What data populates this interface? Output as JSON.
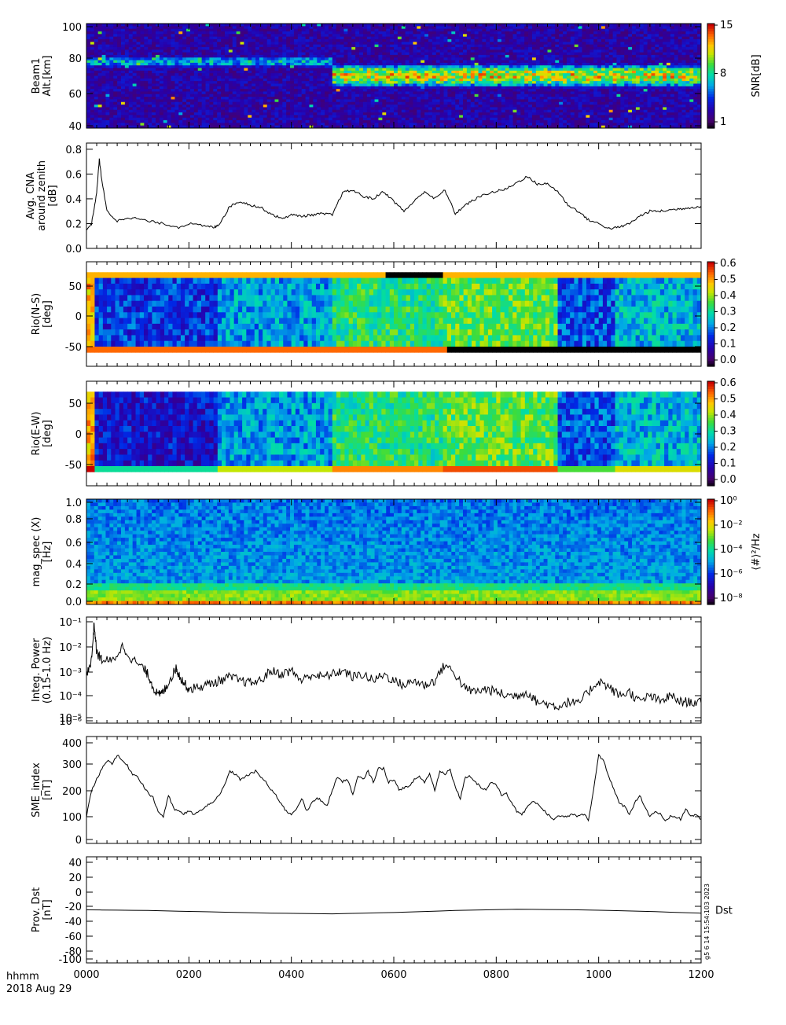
{
  "chart_data": [
    {
      "type": "heatmap",
      "ylabel_lines": [
        "Beam1",
        "Alt.[km]"
      ],
      "yticks": [
        "100",
        "80",
        "60",
        "40"
      ],
      "ylim": [
        40,
        100
      ],
      "xlim": [
        0,
        1200
      ],
      "colorbar": {
        "label": "SNR[dB]",
        "ticks": [
          "15",
          "8",
          "1"
        ],
        "range": [
          1,
          15
        ]
      },
      "features": [
        {
          "x_from": 480,
          "x_to": 1200,
          "alt_center": 70,
          "alt_halfwidth": 8,
          "peak": 14
        },
        {
          "x_from": 0,
          "x_to": 480,
          "alt_center": 78,
          "alt_halfwidth": 4,
          "peak": 9
        }
      ]
    },
    {
      "type": "line",
      "ylabel_lines": [
        "Avg. CNA",
        "around zenith",
        "[dB]"
      ],
      "yticks": [
        "0.8",
        "0.6",
        "0.4",
        "0.2",
        "0.0"
      ],
      "ylim": [
        0,
        0.85
      ],
      "xlim": [
        0,
        1200
      ],
      "series": [
        {
          "x": [
            0,
            10,
            20,
            25,
            30,
            40,
            60,
            80,
            100,
            120,
            150,
            180,
            200,
            230,
            250,
            260,
            280,
            300,
            320,
            340,
            360,
            380,
            400,
            420,
            440,
            460,
            480,
            500,
            520,
            540,
            560,
            580,
            600,
            620,
            640,
            660,
            680,
            700,
            720,
            740,
            760,
            780,
            800,
            820,
            840,
            860,
            880,
            900,
            920,
            940,
            960,
            980,
            1000,
            1020,
            1040,
            1060,
            1080,
            1100,
            1120,
            1140,
            1160,
            1180,
            1200
          ],
          "y": [
            0.15,
            0.2,
            0.45,
            0.72,
            0.55,
            0.3,
            0.22,
            0.25,
            0.24,
            0.22,
            0.2,
            0.17,
            0.2,
            0.18,
            0.17,
            0.2,
            0.34,
            0.38,
            0.35,
            0.33,
            0.28,
            0.24,
            0.27,
            0.26,
            0.27,
            0.28,
            0.27,
            0.45,
            0.47,
            0.42,
            0.4,
            0.46,
            0.38,
            0.3,
            0.38,
            0.46,
            0.4,
            0.47,
            0.28,
            0.35,
            0.4,
            0.44,
            0.46,
            0.48,
            0.53,
            0.58,
            0.52,
            0.52,
            0.46,
            0.35,
            0.3,
            0.23,
            0.2,
            0.16,
            0.17,
            0.2,
            0.26,
            0.3,
            0.3,
            0.31,
            0.32,
            0.33,
            0.34
          ]
        }
      ]
    },
    {
      "type": "heatmap",
      "ylabel_lines": [
        "Rio(N-S)",
        "[deg]"
      ],
      "yticks": [
        "50",
        "0",
        "-50"
      ],
      "ylim": [
        -75,
        75
      ],
      "band_range": [
        -55,
        60
      ],
      "xlim": [
        0,
        1200
      ],
      "colorbar": {
        "label": "",
        "ticks": [
          "0.6",
          "0.5",
          "0.4",
          "0.3",
          "0.2",
          "0.1",
          "0.0"
        ],
        "range": [
          0,
          0.67
        ]
      }
    },
    {
      "type": "heatmap",
      "ylabel_lines": [
        "Rio(E-W)",
        "[deg]"
      ],
      "yticks": [
        "50",
        "0",
        "-50"
      ],
      "ylim": [
        -75,
        75
      ],
      "band_range": [
        -55,
        60
      ],
      "xlim": [
        0,
        1200
      ],
      "colorbar": {
        "label": "",
        "ticks": [
          "0.6",
          "0.5",
          "0.4",
          "0.3",
          "0.2",
          "0.1",
          "0.0"
        ],
        "range": [
          0,
          0.67
        ]
      }
    },
    {
      "type": "heatmap",
      "ylabel_lines": [
        "mag_spec (X)",
        "[Hz]"
      ],
      "yticks": [
        "1.0",
        "0.8",
        "0.6",
        "0.4",
        "0.2",
        "0.0"
      ],
      "ylim": [
        0,
        1.0
      ],
      "xlim": [
        0,
        1200
      ],
      "colorbar": {
        "label": "⟨#⟩²/Hz",
        "ticks": [
          "10⁰",
          "10⁻²",
          "10⁻⁴",
          "10⁻⁶",
          "10⁻⁸"
        ],
        "range": [
          -9,
          1
        ]
      }
    },
    {
      "type": "line",
      "log_y": true,
      "ylabel_lines": [
        "Integ. Power",
        "(0.15-1.0 Hz)"
      ],
      "yticks": [
        "10⁻¹",
        "10⁻²",
        "10⁻³",
        "10⁻⁴",
        "10⁻⁵",
        "10⁻⁶"
      ],
      "ylim": [
        1e-06,
        0.1
      ],
      "xlim": [
        0,
        1200
      ],
      "series": [
        {
          "x": [
            0,
            10,
            15,
            20,
            30,
            50,
            70,
            90,
            110,
            120,
            130,
            140,
            150,
            160,
            175,
            180,
            190,
            200,
            220,
            240,
            260,
            280,
            300,
            320,
            340,
            360,
            380,
            400,
            420,
            440,
            460,
            480,
            500,
            520,
            540,
            560,
            580,
            600,
            620,
            640,
            660,
            680,
            700,
            720,
            740,
            760,
            780,
            800,
            820,
            840,
            860,
            880,
            900,
            920,
            940,
            960,
            980,
            1000,
            1020,
            1040,
            1060,
            1080,
            1100,
            1120,
            1140,
            1160,
            1180,
            1200
          ],
          "y": [
            0.0002,
            0.001,
            0.05,
            0.002,
            0.001,
            0.0008,
            0.004,
            0.001,
            0.0004,
            0.0002,
            5e-05,
            2e-05,
            3e-05,
            8e-05,
            0.0004,
            0.0002,
            8e-05,
            4e-05,
            5e-05,
            7e-05,
            0.0001,
            0.00015,
            0.0001,
            8e-05,
            0.0001,
            0.0003,
            0.0002,
            0.0003,
            0.0001,
            0.0002,
            0.00015,
            0.0002,
            0.0003,
            0.00015,
            0.0002,
            0.0001,
            0.0002,
            0.0001,
            6e-05,
            0.0001,
            6e-05,
            0.0001,
            0.0006,
            0.0002,
            4e-05,
            3e-05,
            4e-05,
            3e-05,
            2e-05,
            2e-05,
            3e-05,
            1e-05,
            8e-06,
            6e-06,
            1e-05,
            8e-06,
            3e-05,
            0.0001,
            5e-05,
            2e-05,
            3e-05,
            1e-05,
            2e-05,
            1e-05,
            2e-05,
            1e-05,
            1e-05,
            9e-06
          ]
        }
      ]
    },
    {
      "type": "line",
      "ylabel_lines": [
        "SME_index",
        "[nT]"
      ],
      "yticks": [
        "400",
        "300",
        "200",
        "100",
        "0"
      ],
      "ylim": [
        0,
        400
      ],
      "xlim": [
        0,
        1200
      ],
      "series": [
        {
          "x": [
            0,
            10,
            20,
            30,
            40,
            50,
            60,
            70,
            80,
            90,
            100,
            110,
            120,
            130,
            140,
            150,
            160,
            170,
            180,
            190,
            200,
            210,
            220,
            230,
            240,
            250,
            260,
            270,
            280,
            290,
            300,
            310,
            320,
            330,
            340,
            350,
            360,
            370,
            380,
            390,
            400,
            410,
            420,
            430,
            440,
            450,
            460,
            470,
            480,
            490,
            500,
            510,
            520,
            530,
            540,
            550,
            560,
            570,
            580,
            590,
            600,
            610,
            620,
            630,
            640,
            650,
            660,
            670,
            680,
            690,
            700,
            710,
            720,
            730,
            740,
            750,
            760,
            770,
            780,
            790,
            800,
            810,
            820,
            830,
            840,
            850,
            860,
            870,
            880,
            890,
            900,
            910,
            920,
            930,
            940,
            950,
            960,
            970,
            980,
            990,
            1000,
            1010,
            1020,
            1030,
            1040,
            1050,
            1060,
            1070,
            1080,
            1090,
            1100,
            1110,
            1120,
            1130,
            1140,
            1150,
            1160,
            1170,
            1180,
            1190,
            1200
          ],
          "y": [
            100,
            200,
            240,
            280,
            310,
            300,
            330,
            310,
            290,
            260,
            250,
            220,
            190,
            170,
            120,
            100,
            180,
            130,
            120,
            110,
            120,
            110,
            120,
            130,
            150,
            160,
            180,
            220,
            270,
            260,
            240,
            250,
            260,
            270,
            250,
            230,
            200,
            180,
            150,
            120,
            110,
            130,
            170,
            120,
            150,
            170,
            160,
            140,
            200,
            250,
            230,
            240,
            180,
            250,
            240,
            270,
            230,
            280,
            280,
            230,
            240,
            200,
            210,
            210,
            240,
            250,
            230,
            260,
            200,
            270,
            260,
            280,
            210,
            170,
            250,
            250,
            230,
            210,
            200,
            230,
            220,
            180,
            190,
            150,
            120,
            110,
            130,
            160,
            150,
            130,
            110,
            90,
            100,
            100,
            100,
            110,
            100,
            110,
            90,
            200,
            330,
            310,
            250,
            200,
            150,
            140,
            110,
            150,
            180,
            140,
            100,
            120,
            110,
            80,
            100,
            100,
            90,
            130,
            100,
            110,
            90
          ]
        }
      ]
    },
    {
      "type": "line",
      "ylabel_lines": [
        "Prov. Dst",
        "[nT]"
      ],
      "yticks": [
        "40",
        "20",
        "0",
        "-20",
        "-40",
        "-60",
        "-80",
        "-100"
      ],
      "ylim": [
        -110,
        50
      ],
      "xlim": [
        0,
        1200
      ],
      "series": [
        {
          "x": [
            0,
            120,
            240,
            360,
            480,
            600,
            720,
            840,
            960,
            1080,
            1200
          ],
          "y": [
            -30,
            -31,
            -33,
            -35,
            -36,
            -34,
            -31,
            -29,
            -30,
            -32,
            -35
          ]
        }
      ],
      "annotations": [
        "Dst",
        "g5 6 14 15:54:103 2023"
      ]
    }
  ],
  "xaxis": {
    "ticks": [
      "0000",
      "0200",
      "0400",
      "0600",
      "0800",
      "1000",
      "1200"
    ],
    "xlabel_lines": [
      "hhmm",
      "2018 Aug 29"
    ]
  },
  "colors": {
    "frame": "#000000",
    "line": "#000000",
    "background": "#ffffff"
  }
}
